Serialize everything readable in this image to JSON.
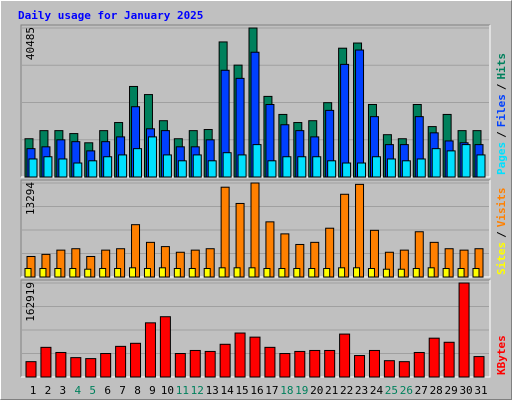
{
  "title": "Daily usage for January 2025",
  "days": [
    1,
    2,
    3,
    4,
    5,
    6,
    7,
    8,
    9,
    10,
    11,
    12,
    13,
    14,
    15,
    16,
    17,
    18,
    19,
    20,
    21,
    22,
    23,
    24,
    25,
    26,
    27,
    28,
    29,
    30,
    31
  ],
  "weekend": [
    false,
    false,
    false,
    true,
    true,
    false,
    false,
    false,
    false,
    false,
    true,
    true,
    false,
    false,
    false,
    false,
    false,
    true,
    true,
    false,
    false,
    false,
    false,
    false,
    true,
    true,
    false,
    false,
    false,
    false,
    false
  ],
  "weekday_label_color": "#000000",
  "weekend_label_color": "#00805c",
  "legend_separator": "/",
  "chart_data": [
    {
      "type": "bar",
      "ylim": [
        0,
        40485
      ],
      "yticks": [
        40485
      ],
      "series": [
        {
          "name": "Hits",
          "color": "#00805c",
          "values": [
            10400,
            12600,
            12600,
            11800,
            9300,
            12600,
            14800,
            24600,
            22400,
            15300,
            10400,
            12600,
            12900,
            36700,
            30400,
            40485,
            21900,
            17000,
            14800,
            15300,
            20200,
            35000,
            36400,
            19700,
            11500,
            10400,
            19700,
            13700,
            17000,
            12600,
            12600
          ]
        },
        {
          "name": "Files",
          "color": "#0040ff",
          "values": [
            7700,
            8200,
            10100,
            9600,
            7100,
            9600,
            10900,
            19100,
            13100,
            12600,
            8200,
            8200,
            10100,
            29000,
            26800,
            33900,
            19700,
            14200,
            12600,
            10900,
            18100,
            30600,
            34500,
            16400,
            8800,
            8800,
            16400,
            12000,
            9800,
            9300,
            8800
          ]
        },
        {
          "name": "Pages",
          "color": "#00e0ff",
          "values": [
            4900,
            5500,
            4900,
            3800,
            4400,
            5500,
            6000,
            7700,
            10900,
            6000,
            4400,
            6000,
            4400,
            6600,
            6000,
            8800,
            4400,
            5500,
            5500,
            5500,
            4400,
            3800,
            3800,
            5500,
            4900,
            4400,
            4900,
            7700,
            7100,
            8800,
            6000
          ]
        }
      ]
    },
    {
      "type": "bar",
      "ylim": [
        0,
        13294
      ],
      "yticks": [
        13294
      ],
      "series": [
        {
          "name": "Visits",
          "color": "#ff8000",
          "values": [
            2900,
            3200,
            3800,
            4000,
            2900,
            3800,
            4000,
            7400,
            4900,
            4300,
            3500,
            3800,
            4000,
            12700,
            10400,
            13294,
            7800,
            6100,
            4600,
            4900,
            6900,
            11700,
            13100,
            6600,
            3500,
            3800,
            6400,
            4900,
            4000,
            3800,
            4000
          ]
        },
        {
          "name": "Sites",
          "color": "#ffff00",
          "values": [
            1200,
            1200,
            1200,
            1200,
            1100,
            1200,
            1200,
            1300,
            1200,
            1300,
            1200,
            1200,
            1200,
            1300,
            1300,
            1300,
            1200,
            1200,
            1200,
            1200,
            1200,
            1300,
            1300,
            1200,
            1100,
            1100,
            1200,
            1300,
            1200,
            1200,
            1200
          ]
        }
      ]
    },
    {
      "type": "bar",
      "ylim": [
        0,
        162919
      ],
      "yticks": [
        162919
      ],
      "series": [
        {
          "name": "KBytes",
          "color": "#ff0000",
          "values": [
            26600,
            51400,
            42500,
            33600,
            31900,
            40700,
            53100,
            58400,
            93900,
            104500,
            40700,
            46000,
            44300,
            56700,
            76200,
            69100,
            51400,
            40700,
            44300,
            46000,
            46000,
            74400,
            37200,
            46000,
            28300,
            26600,
            42500,
            67300,
            60200,
            162919,
            35400
          ]
        }
      ]
    }
  ]
}
